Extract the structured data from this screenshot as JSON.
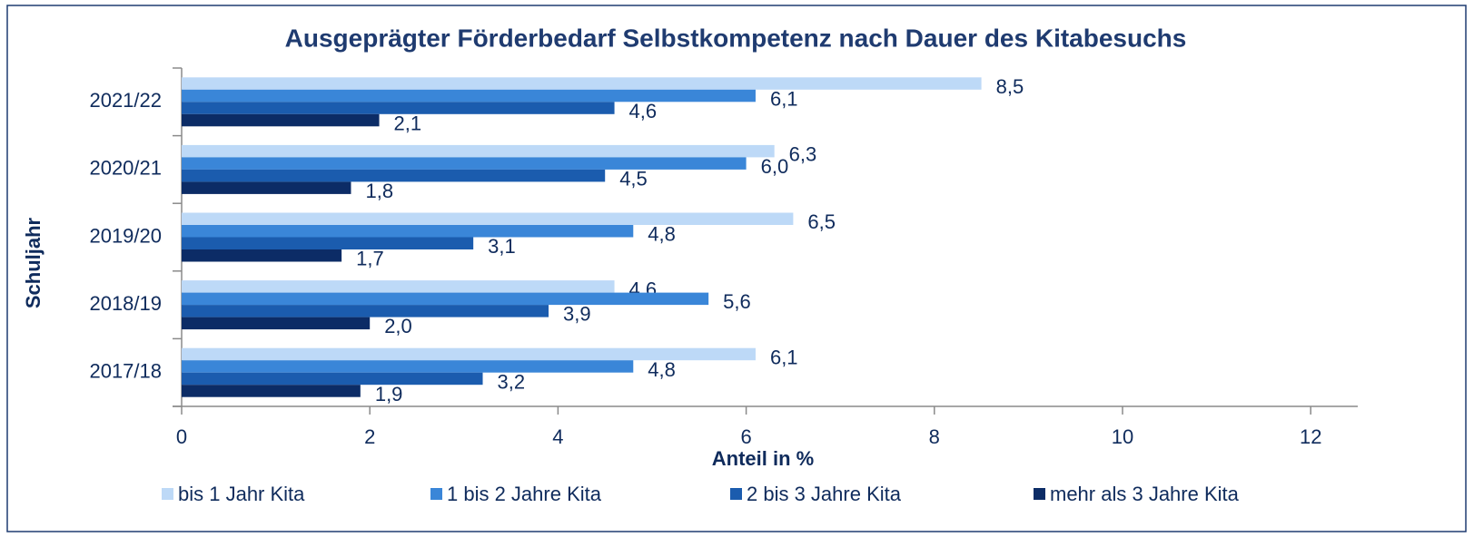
{
  "chart_data": {
    "type": "barh",
    "title": "Ausgeprägter Förderbedarf  Selbstkompetenz nach Dauer des Kitabesuchs",
    "x_label": "Anteil in %",
    "y_label": "Schuljahr",
    "categories": [
      "2021/22",
      "2020/21",
      "2019/20",
      "2018/19",
      "2017/18"
    ],
    "series": [
      {
        "name": "bis 1 Jahr Kita",
        "color": "#bdd9f7",
        "values": [
          8.5,
          6.3,
          6.5,
          4.6,
          6.1
        ],
        "value_labels": [
          "8,5",
          "6,3",
          "6,5",
          "4,6",
          "6,1"
        ]
      },
      {
        "name": "1 bis 2 Jahre Kita",
        "color": "#3a86d8",
        "values": [
          6.1,
          6.0,
          4.8,
          5.6,
          4.8
        ],
        "value_labels": [
          "6,1",
          "6,0",
          "4,8",
          "5,6",
          "4,8"
        ]
      },
      {
        "name": "2 bis 3 Jahre Kita",
        "color": "#1b5cae",
        "values": [
          4.6,
          4.5,
          3.1,
          3.9,
          3.2
        ],
        "value_labels": [
          "4,6",
          "4,5",
          "3,1",
          "3,9",
          "3,2"
        ]
      },
      {
        "name": "mehr als 3 Jahre Kita",
        "color": "#0c2c66",
        "values": [
          2.1,
          1.8,
          1.7,
          2.0,
          1.9
        ],
        "value_labels": [
          "2,1",
          "1,8",
          "1,7",
          "2,0",
          "1,9"
        ]
      }
    ],
    "xlim": [
      0,
      12.5
    ],
    "xticks": [
      0,
      2,
      4,
      6,
      8,
      10,
      12
    ],
    "legend": "bottom"
  }
}
